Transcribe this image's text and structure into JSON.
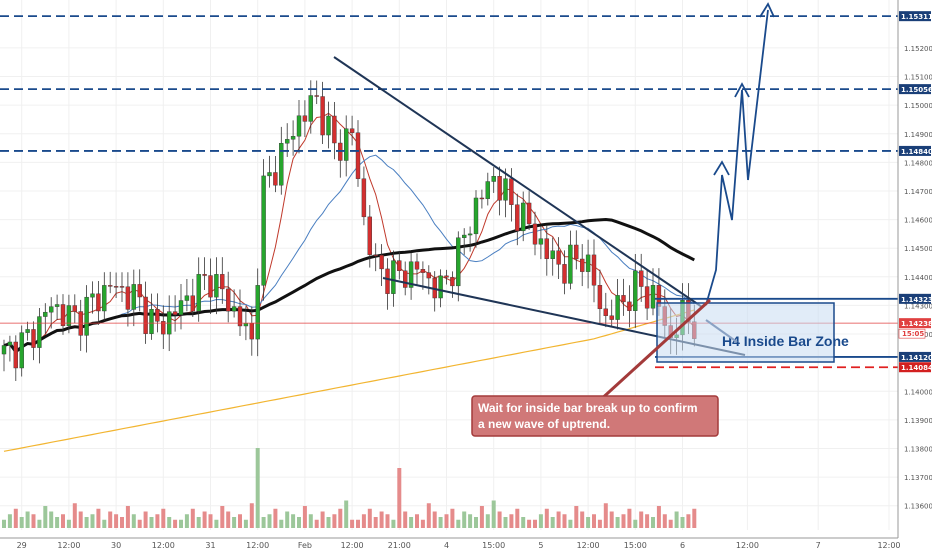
{
  "chart_data": {
    "type": "candlestick",
    "instrument_hint": "",
    "price_axis": {
      "ylim": [
        1.1355,
        1.1535
      ],
      "ticks": [
        "1.15200",
        "1.15100",
        "1.15000",
        "1.14900",
        "1.14800",
        "1.14700",
        "1.14600",
        "1.14500",
        "1.14400",
        "1.14300",
        "1.14200",
        "1.14000",
        "1.13900",
        "1.13800",
        "1.13700",
        "1.13600"
      ],
      "tick_values": [
        1.152,
        1.151,
        1.15,
        1.149,
        1.148,
        1.147,
        1.146,
        1.145,
        1.144,
        1.143,
        1.142,
        1.14,
        1.139,
        1.138,
        1.137,
        1.136
      ]
    },
    "time_axis": {
      "labels": [
        "29",
        "12:00",
        "30",
        "12:00",
        "31",
        "12:00",
        "Feb",
        "12:00",
        "21:00",
        "4",
        "15:00",
        "5",
        "12:00",
        "15:00",
        "6",
        "12:00",
        "7",
        "12:00"
      ],
      "label_index": [
        3,
        11,
        19,
        27,
        35,
        43,
        51,
        59,
        67,
        75,
        83,
        91,
        99,
        107,
        115,
        126,
        138,
        150
      ],
      "bar_count": 152
    },
    "levels": [
      {
        "label": "1.15311",
        "value": 1.15311,
        "style": "dashed",
        "color": "#1a4a8c"
      },
      {
        "label": "1.15056",
        "value": 1.15056,
        "style": "dashed",
        "color": "#1a4a8c"
      },
      {
        "label": "1.14840",
        "value": 1.1484,
        "style": "dashed",
        "color": "#1a4a8c"
      },
      {
        "label": "1.14323",
        "value": 1.14323,
        "style": "solid",
        "color": "#1a4a8c"
      },
      {
        "label": "1.14238",
        "value": 1.14238,
        "style": "solid",
        "color": "#e04040"
      },
      {
        "label": "1.14120",
        "value": 1.1412,
        "style": "solid",
        "color": "#1a4a8c"
      },
      {
        "label": "1.14084",
        "value": 1.14084,
        "style": "dashed",
        "color": "#e02020"
      }
    ],
    "countdown_badge": "15:05",
    "zone": {
      "label": "H4 Inside Bar Zone",
      "top": 1.14323,
      "bottom": 1.1412,
      "from_bar": 95,
      "to_bar": 121
    },
    "annotation": "Wait for inside bar break up to confirm a new wave of uptrend.",
    "anchors": [
      {
        "i": 0,
        "p": 1.1413
      },
      {
        "i": 4,
        "p": 1.1418
      },
      {
        "i": 8,
        "p": 1.143
      },
      {
        "i": 12,
        "p": 1.1425
      },
      {
        "i": 18,
        "p": 1.1437
      },
      {
        "i": 22,
        "p": 1.1433
      },
      {
        "i": 26,
        "p": 1.1422
      },
      {
        "i": 30,
        "p": 1.143
      },
      {
        "i": 35,
        "p": 1.144
      },
      {
        "i": 40,
        "p": 1.1425
      },
      {
        "i": 42,
        "p": 1.1417
      },
      {
        "i": 44,
        "p": 1.147
      },
      {
        "i": 47,
        "p": 1.1483
      },
      {
        "i": 50,
        "p": 1.1495
      },
      {
        "i": 53,
        "p": 1.1502
      },
      {
        "i": 56,
        "p": 1.1485
      },
      {
        "i": 59,
        "p": 1.149
      },
      {
        "i": 61,
        "p": 1.146
      },
      {
        "i": 63,
        "p": 1.1443
      },
      {
        "i": 66,
        "p": 1.144
      },
      {
        "i": 70,
        "p": 1.1443
      },
      {
        "i": 74,
        "p": 1.1435
      },
      {
        "i": 77,
        "p": 1.1448
      },
      {
        "i": 80,
        "p": 1.1465
      },
      {
        "i": 83,
        "p": 1.1475
      },
      {
        "i": 86,
        "p": 1.1465
      },
      {
        "i": 89,
        "p": 1.1458
      },
      {
        "i": 92,
        "p": 1.1448
      },
      {
        "i": 95,
        "p": 1.1443
      },
      {
        "i": 98,
        "p": 1.1448
      },
      {
        "i": 100,
        "p": 1.1437
      },
      {
        "i": 102,
        "p": 1.1425
      },
      {
        "i": 105,
        "p": 1.1432
      },
      {
        "i": 108,
        "p": 1.1437
      },
      {
        "i": 111,
        "p": 1.143
      },
      {
        "i": 113,
        "p": 1.1418
      },
      {
        "i": 115,
        "p": 1.1427
      },
      {
        "i": 117,
        "p": 1.1424
      }
    ],
    "volume_pattern": [
      0.3,
      0.5,
      0.7,
      0.4,
      0.6,
      0.5,
      0.3,
      0.8,
      0.6,
      0.4,
      0.5,
      0.3,
      0.9,
      0.6,
      0.4,
      0.5,
      0.7,
      0.3,
      0.6,
      0.5,
      0.4,
      0.8,
      0.5,
      0.3,
      0.6,
      0.4,
      0.5,
      0.7,
      0.4,
      0.3
    ],
    "volume_spikes": {
      "43": 1.6,
      "67": 1.2,
      "83": 1.0,
      "58": 1.0
    }
  }
}
